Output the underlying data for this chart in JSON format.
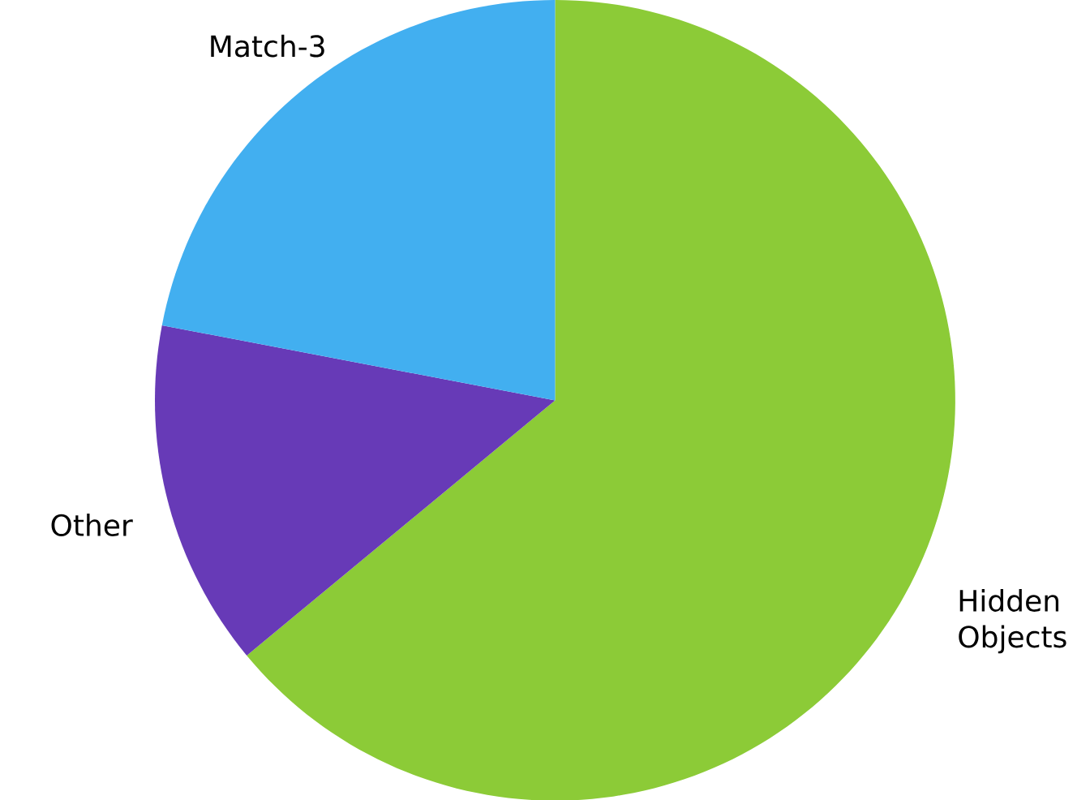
{
  "chart_data": {
    "type": "pie",
    "categories": [
      "Hidden Objects",
      "Other",
      "Match-3"
    ],
    "values": [
      64,
      14,
      22
    ],
    "colors": [
      "#8ccb37",
      "#673ab7",
      "#42aff0"
    ]
  }
}
